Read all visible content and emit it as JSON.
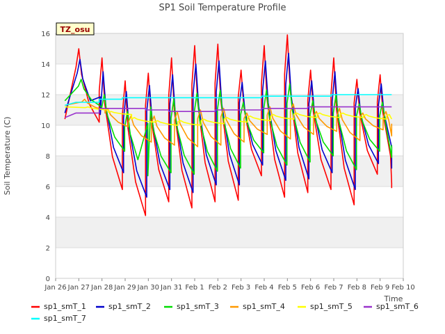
{
  "chart_data": {
    "type": "line",
    "title": "SP1 Soil Temperature Profile",
    "xlabel": "Time",
    "ylabel": "Soil Temperature (C)",
    "badge": "TZ_osu",
    "xlim": [
      0,
      15
    ],
    "ylim": [
      0,
      16
    ],
    "yticks": [
      0,
      2,
      4,
      6,
      8,
      10,
      12,
      14,
      16
    ],
    "xticks": [
      {
        "x": 0,
        "label": "Jan 26"
      },
      {
        "x": 1,
        "label": "Jan 27"
      },
      {
        "x": 2,
        "label": "Jan 28"
      },
      {
        "x": 3,
        "label": "Jan 29"
      },
      {
        "x": 4,
        "label": "Jan 30"
      },
      {
        "x": 5,
        "label": "Jan 31"
      },
      {
        "x": 6,
        "label": "Feb 1"
      },
      {
        "x": 7,
        "label": "Feb 2"
      },
      {
        "x": 8,
        "label": "Feb 3"
      },
      {
        "x": 9,
        "label": "Feb 4"
      },
      {
        "x": 10,
        "label": "Feb 5"
      },
      {
        "x": 11,
        "label": "Feb 6"
      },
      {
        "x": 12,
        "label": "Feb 7"
      },
      {
        "x": 13,
        "label": "Feb 8"
      },
      {
        "x": 14,
        "label": "Feb 9"
      },
      {
        "x": 15,
        "label": "Feb 10"
      }
    ],
    "x_start": 0.4,
    "x_end": 14.5,
    "series": [
      {
        "name": "sp1_smT_1",
        "color": "#ff0000",
        "days": [
          0.4,
          1.0,
          2.0,
          3.0,
          4.0,
          5.0,
          6.0,
          7.0,
          8.0,
          9.0,
          10.0,
          11.0,
          12.0,
          13.0,
          14.0,
          14.5
        ],
        "highs": [
          10.4,
          15.0,
          14.4,
          12.9,
          13.4,
          14.4,
          15.2,
          15.3,
          13.6,
          15.2,
          15.9,
          13.6,
          14.4,
          13.0,
          13.3,
          13.3
        ],
        "lows": [
          10.4,
          10.2,
          5.8,
          4.1,
          5.0,
          4.6,
          5.0,
          5.1,
          6.7,
          5.3,
          5.6,
          5.8,
          4.8,
          6.8,
          6.2,
          5.9
        ]
      },
      {
        "name": "sp1_smT_2",
        "color": "#0000cc",
        "days": [
          0.4,
          1.05,
          2.05,
          3.05,
          4.05,
          5.05,
          6.05,
          7.05,
          8.05,
          9.05,
          10.05,
          11.05,
          12.05,
          13.05,
          14.05,
          14.5
        ],
        "highs": [
          10.8,
          14.3,
          13.5,
          12.2,
          12.6,
          13.3,
          14.0,
          14.2,
          12.8,
          14.2,
          14.7,
          12.9,
          13.5,
          12.4,
          12.7,
          12.7
        ],
        "lows": [
          10.8,
          10.7,
          6.9,
          5.3,
          5.8,
          5.6,
          6.1,
          6.1,
          7.4,
          6.4,
          6.5,
          6.9,
          5.8,
          7.5,
          7.2,
          7.3
        ]
      },
      {
        "name": "sp1_smT_3",
        "color": "#00dd00",
        "days": [
          0.4,
          1.1,
          2.1,
          3.1,
          4.1,
          5.1,
          6.1,
          7.1,
          8.1,
          9.1,
          10.1,
          11.1,
          12.1,
          13.1,
          14.1,
          14.5
        ],
        "highs": [
          11.6,
          13.0,
          12.0,
          10.9,
          11.2,
          11.7,
          12.1,
          12.3,
          11.5,
          12.3,
          12.7,
          11.6,
          12.0,
          11.4,
          11.5,
          11.5
        ],
        "lows": [
          11.6,
          11.2,
          8.3,
          6.7,
          6.9,
          6.8,
          7.0,
          7.2,
          8.2,
          7.4,
          7.6,
          8.0,
          7.1,
          8.3,
          7.9,
          8.7
        ]
      },
      {
        "name": "sp1_smT_4",
        "color": "#ff9900",
        "days": [
          0.4,
          1.25,
          2.25,
          3.25,
          4.25,
          5.25,
          6.25,
          7.25,
          8.25,
          9.25,
          10.25,
          11.25,
          12.25,
          13.25,
          14.25,
          14.5
        ],
        "highs": [
          11.3,
          11.7,
          11.1,
          10.6,
          10.6,
          10.9,
          11.0,
          11.1,
          10.8,
          11.2,
          11.4,
          10.9,
          11.1,
          10.8,
          10.9,
          10.9
        ],
        "lows": [
          11.3,
          11.0,
          9.9,
          8.9,
          8.7,
          8.6,
          8.7,
          8.9,
          9.4,
          9.1,
          9.4,
          9.6,
          9.0,
          9.7,
          9.3,
          10.1
        ]
      },
      {
        "name": "sp1_smT_5",
        "color": "#ffff00",
        "days": [
          0.4,
          1.4,
          2.4,
          3.4,
          4.4,
          5.4,
          6.4,
          7.4,
          8.4,
          9.4,
          10.4,
          11.4,
          12.4,
          13.4,
          14.4,
          14.5
        ],
        "highs": [
          11.2,
          11.2,
          10.9,
          10.5,
          10.3,
          10.3,
          10.4,
          10.5,
          10.6,
          10.7,
          10.8,
          10.8,
          10.8,
          10.7,
          10.7,
          10.7
        ],
        "lows": [
          11.2,
          11.0,
          10.7,
          10.2,
          10.0,
          10.0,
          10.1,
          10.2,
          10.3,
          10.4,
          10.5,
          10.5,
          10.5,
          10.4,
          10.4,
          10.4
        ]
      },
      {
        "name": "sp1_smT_6",
        "color": "#9933cc",
        "days": [
          0.4,
          1.0,
          2.0,
          3.0,
          4.0,
          5.0,
          6.0,
          7.0,
          8.0,
          9.0,
          10.0,
          11.0,
          12.0,
          13.0,
          14.0,
          14.5
        ],
        "highs": [
          10.5,
          10.8,
          11.1,
          11.1,
          11.0,
          10.9,
          10.9,
          11.0,
          11.0,
          11.1,
          11.1,
          11.2,
          11.2,
          11.2,
          11.2,
          11.2
        ],
        "lows": [
          10.5,
          10.8,
          11.1,
          11.1,
          11.0,
          10.9,
          10.9,
          11.0,
          11.0,
          11.1,
          11.1,
          11.2,
          11.2,
          11.2,
          11.2,
          11.2
        ]
      },
      {
        "name": "sp1_smT_7",
        "color": "#00ffff",
        "days": [
          0.4,
          1.0,
          2.0,
          3.0,
          4.0,
          5.0,
          6.0,
          7.0,
          8.0,
          9.0,
          10.0,
          11.0,
          12.0,
          13.0,
          14.0,
          14.5
        ],
        "highs": [
          11.3,
          11.5,
          11.7,
          11.8,
          11.8,
          11.8,
          11.8,
          11.8,
          11.8,
          11.9,
          11.9,
          11.9,
          12.0,
          12.0,
          12.0,
          12.0
        ],
        "lows": [
          11.3,
          11.5,
          11.7,
          11.8,
          11.8,
          11.8,
          11.8,
          11.8,
          11.8,
          11.9,
          11.9,
          11.9,
          12.0,
          12.0,
          12.0,
          12.0
        ]
      }
    ]
  }
}
